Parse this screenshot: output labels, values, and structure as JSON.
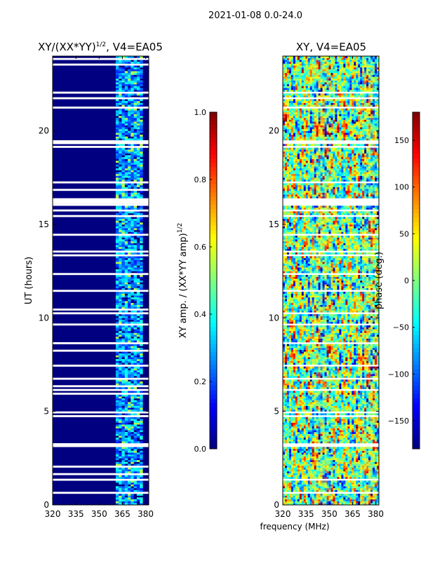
{
  "figure_title": "2021-01-08 0.0-24.0",
  "shared_xlabel": "frequency (MHz)",
  "chart_data": [
    {
      "type": "heatmap",
      "title": "XY/(XX*YY)",
      "title_exponent": "1/2",
      "title_suffix": ", V4=EA05",
      "xlabel": "",
      "ylabel": "UT (hours)",
      "xlim": [
        320,
        382
      ],
      "ylim": [
        0,
        24
      ],
      "xticks": [
        320,
        335,
        350,
        365,
        380
      ],
      "yticks": [
        0,
        5,
        10,
        15,
        20
      ],
      "colormap": "jet",
      "colorbar": {
        "label": "XY amp. / (XX*YY amp)",
        "label_exponent": "1/2",
        "range": [
          0.0,
          1.0
        ],
        "ticks": [
          "0.0",
          "0.2",
          "0.4",
          "0.6",
          "0.8",
          "1.0"
        ],
        "tick_values": [
          0.0,
          0.2,
          0.4,
          0.6,
          0.8,
          1.0
        ]
      },
      "background_value": 0.0,
      "active_freq_range": [
        360,
        379
      ],
      "active_value_typical": 0.3,
      "active_value_peak": 0.55
    },
    {
      "type": "heatmap",
      "title": "XY, V4=EA05",
      "xlabel": "frequency (MHz)",
      "ylabel": "",
      "xlim": [
        320,
        382
      ],
      "ylim": [
        0,
        24
      ],
      "xticks": [
        320,
        335,
        350,
        365,
        380
      ],
      "yticks": [
        0,
        5,
        10,
        15,
        20
      ],
      "colormap": "jet",
      "colorbar": {
        "label": "phase (deg.)",
        "range": [
          -180,
          180
        ],
        "ticks": [
          "150",
          "100",
          "50",
          "0",
          "−50",
          "−100",
          "−150"
        ],
        "tick_values": [
          150,
          100,
          50,
          0,
          -50,
          -100,
          -150
        ]
      },
      "value_range": [
        -180,
        180
      ]
    }
  ]
}
